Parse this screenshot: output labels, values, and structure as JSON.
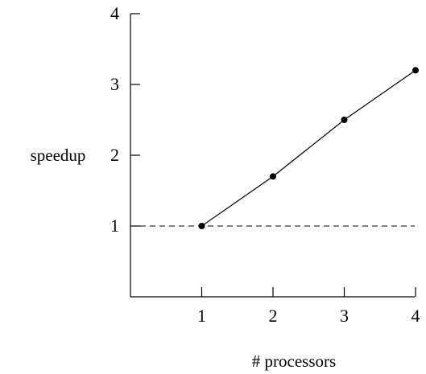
{
  "chart_data": {
    "type": "line",
    "title": "",
    "xlabel": "# processors",
    "ylabel": "speedup",
    "x": [
      1,
      2,
      3,
      4
    ],
    "series": [
      {
        "values": [
          1.0,
          1.7,
          2.5,
          3.2
        ]
      }
    ],
    "reference_line": {
      "y": 1,
      "style": "dashed"
    },
    "xlim": [
      0,
      4
    ],
    "ylim": [
      0,
      4
    ],
    "xticks": [
      "1",
      "2",
      "3",
      "4"
    ],
    "yticks": [
      "1",
      "2",
      "3",
      "4"
    ],
    "grid": false,
    "markers": "filled-circle",
    "colors": {
      "line": "#000000",
      "axis": "#000000"
    }
  }
}
